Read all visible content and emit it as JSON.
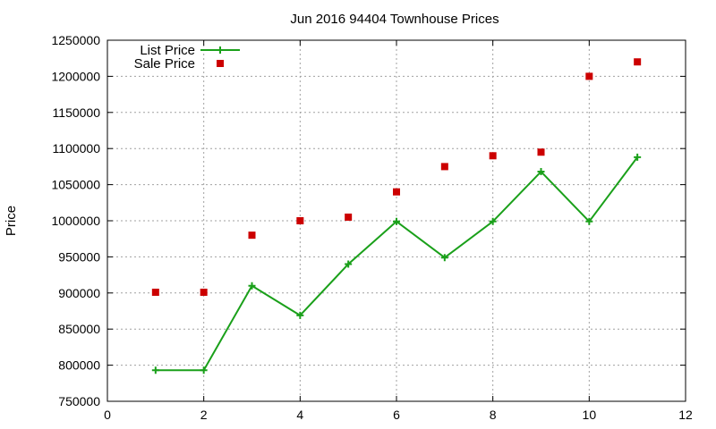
{
  "chart_data": {
    "type": "line",
    "title": "Jun 2016 94404 Townhouse Prices",
    "xlabel": "",
    "ylabel": "Price",
    "xlim": [
      0,
      12
    ],
    "ylim": [
      750000,
      1250000
    ],
    "x_ticks": [
      "0",
      "2",
      "4",
      "6",
      "8",
      "10",
      "12"
    ],
    "y_ticks": [
      "750000",
      "800000",
      "850000",
      "900000",
      "950000",
      "1000000",
      "1050000",
      "1100000",
      "1150000",
      "1200000",
      "1250000"
    ],
    "grid": true,
    "legend_position": "top-left",
    "series": [
      {
        "name": "List Price",
        "style": "line-points",
        "color": "#1aa01a",
        "marker": "plus",
        "x": [
          1,
          2,
          3,
          4,
          5,
          6,
          7,
          8,
          9,
          10,
          11
        ],
        "y": [
          793000,
          793000,
          910000,
          869000,
          940000,
          999000,
          949000,
          999000,
          1068000,
          999000,
          1088000
        ]
      },
      {
        "name": "Sale Price",
        "style": "points",
        "color": "#cc0000",
        "marker": "square",
        "x": [
          1,
          2,
          3,
          4,
          5,
          6,
          7,
          8,
          9,
          10,
          11
        ],
        "y": [
          901000,
          901000,
          980000,
          1000000,
          1005000,
          1040000,
          1075000,
          1090000,
          1095000,
          1200000,
          1220000
        ]
      }
    ]
  }
}
